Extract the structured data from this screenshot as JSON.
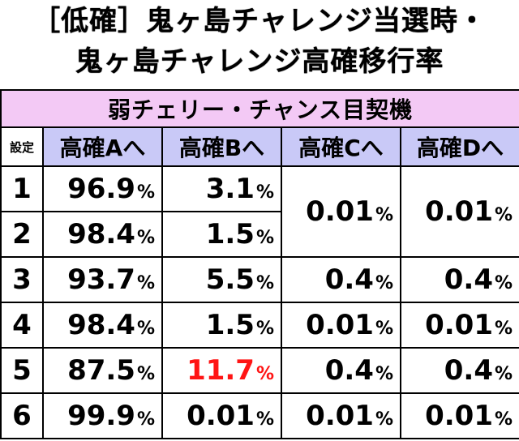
{
  "title": {
    "line1": "［低確］鬼ヶ島チャレンジ当選時・",
    "line2": "鬼ヶ島チャレンジ高確移行率"
  },
  "table": {
    "subtitle": "弱チェリー・チャンス目契機",
    "headers": [
      "設定",
      "高確Aへ",
      "高確Bへ",
      "高確Cへ",
      "高確Dへ"
    ],
    "percent_sign": "%",
    "merged_12": {
      "c": "0.01",
      "d": "0.01"
    },
    "rows": [
      {
        "setting": "1",
        "a": "96.9",
        "b": "3.1"
      },
      {
        "setting": "2",
        "a": "98.4",
        "b": "1.5"
      },
      {
        "setting": "3",
        "a": "93.7",
        "b": "5.5",
        "c": "0.4",
        "d": "0.4"
      },
      {
        "setting": "4",
        "a": "98.4",
        "b": "1.5",
        "c": "0.01",
        "d": "0.01"
      },
      {
        "setting": "5",
        "a": "87.5",
        "b": "11.7",
        "c": "0.4",
        "d": "0.4"
      },
      {
        "setting": "6",
        "a": "99.9",
        "b": "0.01",
        "c": "0.01",
        "d": "0.01"
      }
    ],
    "highlight_color": "#ff1414",
    "subtitle_bg": "#f3c9f5",
    "header_bg": "#c9c9f7"
  }
}
